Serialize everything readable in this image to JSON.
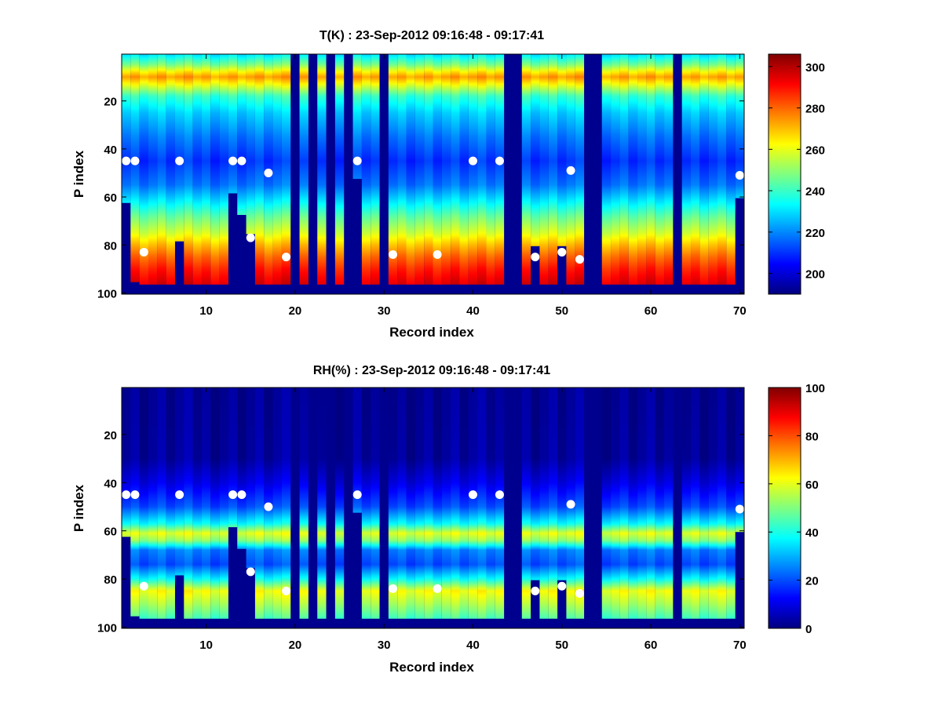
{
  "chart_data": [
    {
      "type": "heatmap",
      "title": "T(K) : 23-Sep-2012 09:16:48 - 09:17:41",
      "xlabel": "Record index",
      "ylabel": "P index",
      "xlim": [
        0.5,
        70.5
      ],
      "ylim": [
        100.5,
        0.5
      ],
      "y_reversed": true,
      "xticks": [
        10,
        20,
        30,
        40,
        50,
        60,
        70
      ],
      "yticks": [
        20,
        40,
        60,
        80,
        100
      ],
      "colormap": "jet",
      "clim": [
        190,
        306
      ],
      "colorbar_ticks": [
        200,
        220,
        240,
        260,
        280,
        300
      ],
      "profile": [
        {
          "p": 1,
          "value": 232
        },
        {
          "p": 5,
          "value": 248
        },
        {
          "p": 8,
          "value": 265
        },
        {
          "p": 10,
          "value": 274
        },
        {
          "p": 13,
          "value": 262
        },
        {
          "p": 18,
          "value": 240
        },
        {
          "p": 25,
          "value": 228
        },
        {
          "p": 35,
          "value": 218
        },
        {
          "p": 45,
          "value": 210
        },
        {
          "p": 55,
          "value": 218
        },
        {
          "p": 62,
          "value": 232
        },
        {
          "p": 68,
          "value": 245
        },
        {
          "p": 75,
          "value": 258
        },
        {
          "p": 80,
          "value": 270
        },
        {
          "p": 85,
          "value": 280
        },
        {
          "p": 90,
          "value": 288
        },
        {
          "p": 96,
          "value": 295
        }
      ],
      "valid_bottom_p": [
        62,
        95,
        96,
        96,
        96,
        96,
        78,
        96,
        96,
        96,
        96,
        96,
        58,
        67,
        75,
        96,
        96,
        96,
        96,
        0,
        96,
        0,
        96,
        0,
        96,
        0,
        52,
        96,
        96,
        0,
        96,
        96,
        96,
        96,
        96,
        96,
        96,
        96,
        96,
        96,
        96,
        96,
        96,
        0,
        0,
        96,
        80,
        96,
        96,
        80,
        96,
        96,
        0,
        0,
        96,
        96,
        96,
        96,
        96,
        96,
        96,
        96,
        0,
        96,
        96,
        96,
        96,
        96,
        96,
        60
      ],
      "markers": [
        {
          "record": 1,
          "p": 45
        },
        {
          "record": 2,
          "p": 45
        },
        {
          "record": 3,
          "p": 83
        },
        {
          "record": 7,
          "p": 45
        },
        {
          "record": 13,
          "p": 45
        },
        {
          "record": 14,
          "p": 45
        },
        {
          "record": 15,
          "p": 77
        },
        {
          "record": 17,
          "p": 50
        },
        {
          "record": 19,
          "p": 85
        },
        {
          "record": 27,
          "p": 45
        },
        {
          "record": 31,
          "p": 84
        },
        {
          "record": 36,
          "p": 84
        },
        {
          "record": 40,
          "p": 45
        },
        {
          "record": 43,
          "p": 45
        },
        {
          "record": 47,
          "p": 85
        },
        {
          "record": 50,
          "p": 83
        },
        {
          "record": 51,
          "p": 49
        },
        {
          "record": 52,
          "p": 86
        },
        {
          "record": 70,
          "p": 51
        }
      ]
    },
    {
      "type": "heatmap",
      "title": "RH(%) : 23-Sep-2012 09:16:48 - 09:17:41",
      "xlabel": "Record index",
      "ylabel": "P index",
      "xlim": [
        0.5,
        70.5
      ],
      "ylim": [
        100.5,
        0.5
      ],
      "y_reversed": true,
      "xticks": [
        10,
        20,
        30,
        40,
        50,
        60,
        70
      ],
      "yticks": [
        20,
        40,
        60,
        80,
        100
      ],
      "colormap": "jet",
      "clim": [
        0,
        100
      ],
      "colorbar_ticks": [
        0,
        20,
        40,
        60,
        80,
        100
      ],
      "profile": [
        {
          "p": 1,
          "value": 2
        },
        {
          "p": 30,
          "value": 3
        },
        {
          "p": 40,
          "value": 10
        },
        {
          "p": 50,
          "value": 20
        },
        {
          "p": 57,
          "value": 38
        },
        {
          "p": 61,
          "value": 60
        },
        {
          "p": 64,
          "value": 52
        },
        {
          "p": 68,
          "value": 25
        },
        {
          "p": 74,
          "value": 20
        },
        {
          "p": 80,
          "value": 38
        },
        {
          "p": 85,
          "value": 62
        },
        {
          "p": 90,
          "value": 55
        },
        {
          "p": 96,
          "value": 45
        }
      ],
      "valid_bottom_p": [
        62,
        95,
        96,
        96,
        96,
        96,
        78,
        96,
        96,
        96,
        96,
        96,
        58,
        67,
        75,
        96,
        96,
        96,
        96,
        0,
        96,
        0,
        96,
        0,
        96,
        0,
        52,
        96,
        96,
        0,
        96,
        96,
        96,
        96,
        96,
        96,
        96,
        96,
        96,
        96,
        96,
        96,
        96,
        0,
        0,
        96,
        80,
        96,
        96,
        80,
        96,
        96,
        0,
        0,
        96,
        96,
        96,
        96,
        96,
        96,
        96,
        96,
        0,
        96,
        96,
        96,
        96,
        96,
        96,
        60
      ],
      "markers": [
        {
          "record": 1,
          "p": 45
        },
        {
          "record": 2,
          "p": 45
        },
        {
          "record": 3,
          "p": 83
        },
        {
          "record": 7,
          "p": 45
        },
        {
          "record": 13,
          "p": 45
        },
        {
          "record": 14,
          "p": 45
        },
        {
          "record": 15,
          "p": 77
        },
        {
          "record": 17,
          "p": 50
        },
        {
          "record": 19,
          "p": 85
        },
        {
          "record": 27,
          "p": 45
        },
        {
          "record": 31,
          "p": 84
        },
        {
          "record": 36,
          "p": 84
        },
        {
          "record": 40,
          "p": 45
        },
        {
          "record": 43,
          "p": 45
        },
        {
          "record": 47,
          "p": 85
        },
        {
          "record": 50,
          "p": 83
        },
        {
          "record": 51,
          "p": 49
        },
        {
          "record": 52,
          "p": 86
        },
        {
          "record": 70,
          "p": 51
        }
      ]
    }
  ]
}
